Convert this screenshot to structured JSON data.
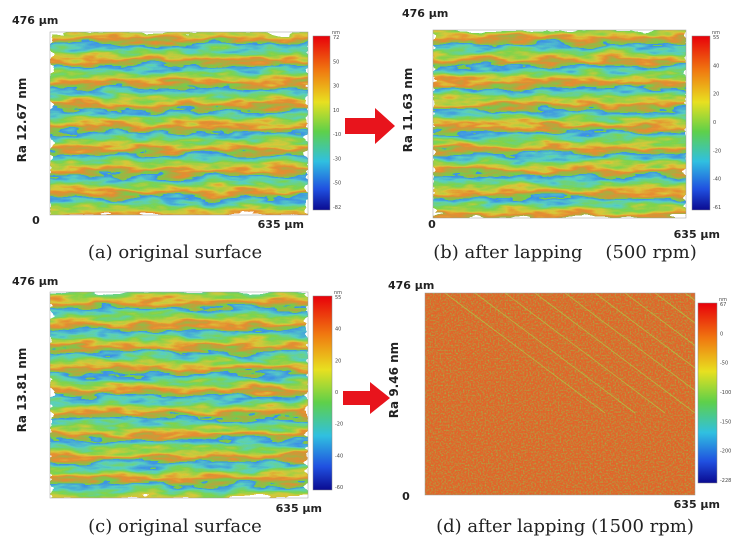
{
  "panels": [
    {
      "caption": "(a) original surface",
      "y_extent": "476 µm",
      "x_extent": "635 µm",
      "origin": "0",
      "ra": "Ra 12.67 nm",
      "unit": "nm",
      "colorbar_ticks": [
        "72",
        "50",
        "30",
        "10",
        "-10",
        "-30",
        "-50",
        "-82"
      ]
    },
    {
      "caption": "(b) after lapping    (500 rpm)",
      "y_extent": "476 µm",
      "x_extent": "635 µm",
      "origin": "0",
      "ra": "Ra 11.63 nm",
      "unit": "nm",
      "colorbar_ticks": [
        "55",
        "40",
        "20",
        "0",
        "-20",
        "-40",
        "-61"
      ]
    },
    {
      "caption": "(c) original surface",
      "y_extent": "476 µm",
      "x_extent": "635 µm",
      "ra": "Ra 13.81 nm",
      "unit": "nm",
      "colorbar_ticks": [
        "55",
        "40",
        "20",
        "0",
        "-20",
        "-40",
        "-60"
      ]
    },
    {
      "caption": "(d) after lapping (1500 rpm)",
      "y_extent": "476 µm",
      "x_extent": "635 µm",
      "origin": "0",
      "ra": "Ra 9.46 nm",
      "unit": "nm",
      "colorbar_ticks": [
        "67",
        "0",
        "-50",
        "-100",
        "-150",
        "-200",
        "-228"
      ]
    }
  ]
}
